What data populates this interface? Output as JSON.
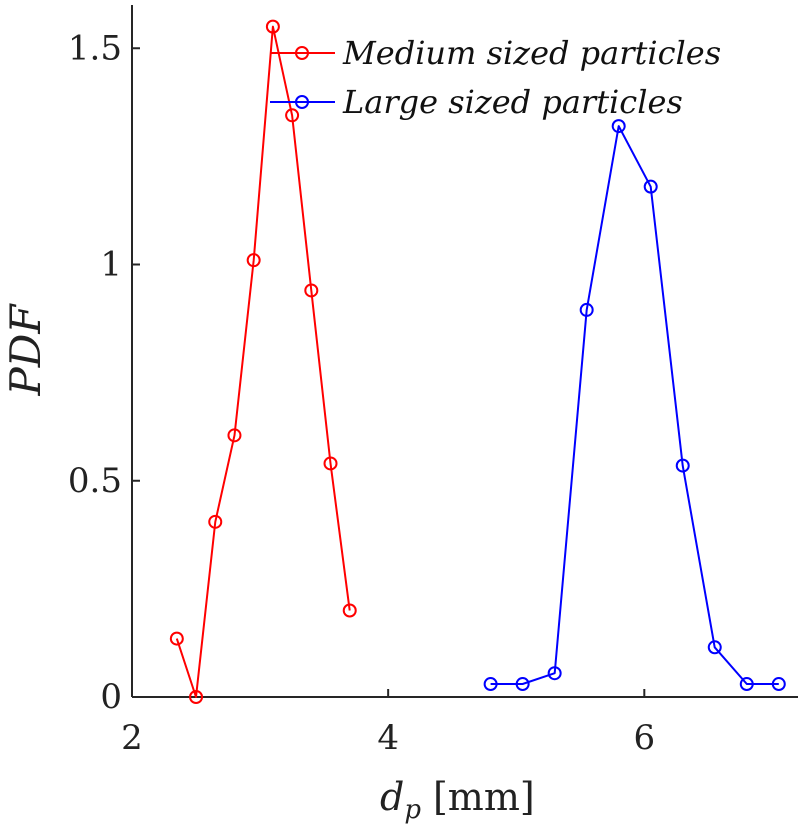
{
  "chart_data": {
    "type": "line",
    "title": "",
    "xlabel": "d_p [mm]",
    "xlabel_main": "d",
    "xlabel_sub": "p",
    "xlabel_unit": "[mm]",
    "ylabel": "PDF",
    "xlim": [
      2,
      7.2
    ],
    "ylim": [
      0,
      1.6
    ],
    "xticks": [
      2,
      4,
      6
    ],
    "xtick_labels": [
      "2",
      "4",
      "6"
    ],
    "yticks": [
      0,
      0.5,
      1,
      1.5
    ],
    "ytick_labels": [
      "0",
      "0.5",
      "1",
      "1.5"
    ],
    "grid": false,
    "legend_position": "top-right",
    "series": [
      {
        "name": "Medium sized particles",
        "color": "#ff0000",
        "marker": "circle",
        "x": [
          2.35,
          2.5,
          2.65,
          2.8,
          2.95,
          3.1,
          3.25,
          3.4,
          3.55,
          3.7
        ],
        "y": [
          0.135,
          0.0,
          0.405,
          0.605,
          1.01,
          1.55,
          1.345,
          0.94,
          0.54,
          0.2
        ]
      },
      {
        "name": "Large sized particles",
        "color": "#0000ff",
        "marker": "circle",
        "x": [
          4.8,
          5.05,
          5.3,
          5.55,
          5.8,
          6.05,
          6.3,
          6.55,
          6.8,
          7.05
        ],
        "y": [
          0.03,
          0.03,
          0.055,
          0.895,
          1.32,
          1.18,
          0.535,
          0.115,
          0.03,
          0.03
        ]
      }
    ]
  }
}
